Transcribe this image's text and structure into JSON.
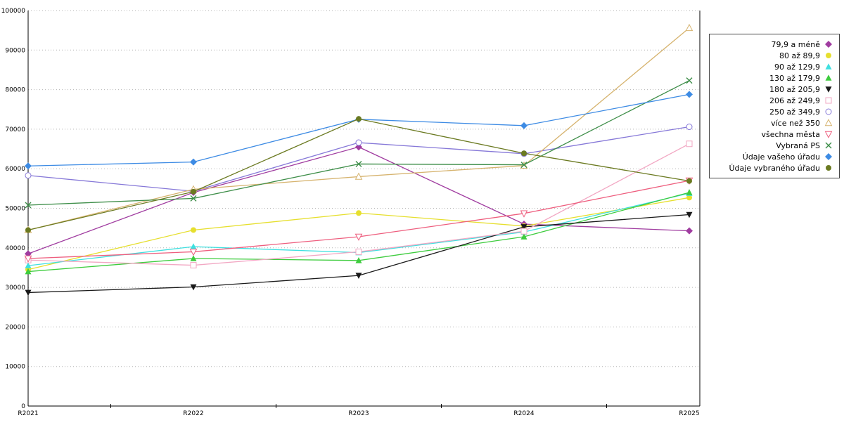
{
  "chart_data": {
    "type": "line",
    "title": "",
    "xlabel": "",
    "ylabel": "",
    "categories": [
      "R2021",
      "R2022",
      "R2023",
      "R2024",
      "R2025"
    ],
    "ylim": [
      0,
      100000
    ],
    "y_ticks": [
      0,
      10000,
      20000,
      30000,
      40000,
      50000,
      60000,
      70000,
      80000,
      90000,
      100000
    ],
    "grid": "dotted-horizontal",
    "legend_position": "right",
    "series": [
      {
        "name": "79,9 a méně",
        "color": "#A03CA0",
        "marker": "diamond",
        "values": [
          38500,
          54000,
          65500,
          46000,
          44300
        ]
      },
      {
        "name": "80 až 89,9",
        "color": "#E6DF2E",
        "marker": "circle",
        "values": [
          34500,
          44500,
          48800,
          45500,
          52700
        ]
      },
      {
        "name": "90 až 129,9",
        "color": "#3FE0E0",
        "marker": "triangle-up",
        "values": [
          35500,
          40300,
          38800,
          44000,
          53800
        ]
      },
      {
        "name": "130 až 179,9",
        "color": "#3ECC3E",
        "marker": "triangle-up",
        "values": [
          34000,
          37300,
          36800,
          42800,
          54000
        ]
      },
      {
        "name": "180 až 205,9",
        "color": "#1A1A1A",
        "marker": "triangle-down",
        "values": [
          28700,
          30100,
          33000,
          45300,
          48400
        ]
      },
      {
        "name": "206 až 249,9",
        "color": "#F2A7C3",
        "marker": "square-open",
        "values": [
          36900,
          35600,
          39000,
          44200,
          66300
        ]
      },
      {
        "name": "250 až 349,9",
        "color": "#8678D8",
        "marker": "circle-open",
        "values": [
          58300,
          54300,
          66600,
          63800,
          70600
        ]
      },
      {
        "name": "více než 350",
        "color": "#D6B36E",
        "marker": "triangle-up-open",
        "values": [
          44500,
          54800,
          58000,
          60800,
          95600
        ]
      },
      {
        "name": "všechna města",
        "color": "#EE5E7E",
        "marker": "triangle-down-open",
        "values": [
          37300,
          39000,
          42800,
          48700,
          57000
        ]
      },
      {
        "name": "Vybraná PS",
        "color": "#3E8E49",
        "marker": "x",
        "values": [
          50800,
          52500,
          61200,
          61000,
          82300
        ]
      },
      {
        "name": "Údaje vašeho úřadu",
        "color": "#3D8BE4",
        "marker": "diamond",
        "values": [
          60700,
          61700,
          72500,
          70900,
          78800
        ]
      },
      {
        "name": "Údaje vybraného úřadu",
        "color": "#6B7A21",
        "marker": "circle",
        "values": [
          44500,
          54200,
          72600,
          63900,
          56900
        ]
      }
    ]
  }
}
